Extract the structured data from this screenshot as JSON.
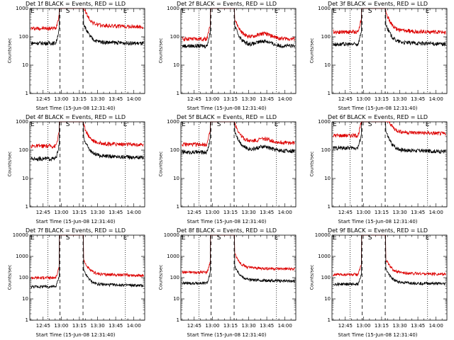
{
  "colors": {
    "events": "#000000",
    "lld": "#dd0000",
    "axes": "#000000"
  },
  "chart_data": [
    {
      "type": "line",
      "title": "Det 1f BLACK = Events, RED = LLD",
      "xlabel": "Start Time (15-Jun-08 12:31:40)",
      "ylabel": "Counts/sec",
      "yscale": "log",
      "ylim": [
        1,
        1000
      ],
      "yticks": [
        "1",
        "10",
        "100",
        "1000"
      ],
      "xlim": [
        "12:34",
        "14:09"
      ],
      "xticks": [
        "12:45",
        "13:00",
        "13:15",
        "13:30",
        "13:45",
        "14:00"
      ],
      "markers": [
        "E",
        "S",
        "E"
      ],
      "series": [
        {
          "level_before": 200,
          "level_after": 260,
          "bump": 1.0,
          "color": "#dd0000"
        },
        {
          "level_before": 60,
          "level_after": 68,
          "bump": 1.0,
          "color": "#000000"
        }
      ]
    },
    {
      "type": "line",
      "title": "Det 2f BLACK = Events, RED = LLD",
      "xlabel": "Start Time (15-Jun-08 12:31:40)",
      "ylabel": "Counts/sec",
      "yscale": "log",
      "ylim": [
        1,
        1000
      ],
      "yticks": [
        "1",
        "10",
        "100",
        "1000"
      ],
      "xlim": [
        "12:34",
        "14:09"
      ],
      "xticks": [
        "12:45",
        "13:00",
        "13:15",
        "13:30",
        "13:45",
        "14:00"
      ],
      "markers": [
        "E",
        "S",
        "E"
      ],
      "series": [
        {
          "level_before": 85,
          "level_after": 100,
          "bump": 1.4,
          "color": "#dd0000"
        },
        {
          "level_before": 48,
          "level_after": 55,
          "bump": 1.4,
          "color": "#000000"
        }
      ]
    },
    {
      "type": "line",
      "title": "Det 3f BLACK = Events, RED = LLD",
      "xlabel": "Start Time (15-Jun-08 12:31:40)",
      "ylabel": "Counts/sec",
      "yscale": "log",
      "ylim": [
        1,
        1000
      ],
      "yticks": [
        "1",
        "10",
        "100",
        "1000"
      ],
      "xlim": [
        "12:34",
        "14:09"
      ],
      "xticks": [
        "12:45",
        "13:00",
        "13:15",
        "13:30",
        "13:45",
        "14:00"
      ],
      "markers": [
        "E",
        "S",
        "E"
      ],
      "series": [
        {
          "level_before": 150,
          "level_after": 170,
          "bump": 1.0,
          "color": "#dd0000"
        },
        {
          "level_before": 55,
          "level_after": 65,
          "bump": 1.0,
          "color": "#000000"
        }
      ]
    },
    {
      "type": "line",
      "title": "Det 4f BLACK = Events, RED = LLD",
      "xlabel": "Start Time (15-Jun-08 12:31:40)",
      "ylabel": "Counts/sec",
      "yscale": "log",
      "ylim": [
        1,
        1000
      ],
      "yticks": [
        "1",
        "10",
        "100",
        "1000"
      ],
      "xlim": [
        "12:34",
        "14:09"
      ],
      "xticks": [
        "12:45",
        "13:00",
        "13:15",
        "13:30",
        "13:45",
        "14:00"
      ],
      "markers": [
        "E",
        "S",
        "E"
      ],
      "series": [
        {
          "level_before": 140,
          "level_after": 180,
          "bump": 1.0,
          "color": "#dd0000"
        },
        {
          "level_before": 50,
          "level_after": 65,
          "bump": 1.0,
          "color": "#000000"
        }
      ]
    },
    {
      "type": "line",
      "title": "Det 5f BLACK = Events, RED = LLD",
      "xlabel": "Start Time (15-Jun-08 12:31:40)",
      "ylabel": "Counts/sec",
      "yscale": "log",
      "ylim": [
        1,
        1000
      ],
      "yticks": [
        "1",
        "10",
        "100",
        "1000"
      ],
      "xlim": [
        "12:34",
        "14:09"
      ],
      "xticks": [
        "12:45",
        "13:00",
        "13:15",
        "13:30",
        "13:45",
        "14:00"
      ],
      "markers": [
        "E",
        "S",
        "E"
      ],
      "series": [
        {
          "level_before": 160,
          "level_after": 210,
          "bump": 1.3,
          "color": "#dd0000"
        },
        {
          "level_before": 85,
          "level_after": 110,
          "bump": 1.3,
          "color": "#000000"
        }
      ]
    },
    {
      "type": "line",
      "title": "Det 6f BLACK = Events, RED = LLD",
      "xlabel": "Start Time (15-Jun-08 12:31:40)",
      "ylabel": "Counts/sec",
      "yscale": "log",
      "ylim": [
        1,
        1000
      ],
      "yticks": [
        "1",
        "10",
        "100",
        "1000"
      ],
      "xlim": [
        "12:34",
        "14:09"
      ],
      "xticks": [
        "12:45",
        "13:00",
        "13:15",
        "13:30",
        "13:45",
        "14:00"
      ],
      "markers": [
        "E",
        "S",
        "E"
      ],
      "series": [
        {
          "level_before": 330,
          "level_after": 450,
          "bump": 1.0,
          "color": "#dd0000"
        },
        {
          "level_before": 120,
          "level_after": 105,
          "bump": 1.0,
          "color": "#000000"
        }
      ]
    },
    {
      "type": "line",
      "title": "Det 7f BLACK = Events, RED = LLD",
      "xlabel": "Start Time (15-Jun-08 12:31:40)",
      "ylabel": "Counts/sec",
      "yscale": "log",
      "ylim": [
        1,
        10000
      ],
      "yticks": [
        "1",
        "10",
        "100",
        "1000",
        "10000"
      ],
      "xlim": [
        "12:34",
        "14:09"
      ],
      "xticks": [
        "12:45",
        "13:00",
        "13:15",
        "13:30",
        "13:45",
        "14:00"
      ],
      "markers": [
        "E",
        "S",
        "E"
      ],
      "series": [
        {
          "level_before": 100,
          "level_after": 150,
          "bump": 1.0,
          "color": "#dd0000"
        },
        {
          "level_before": 38,
          "level_after": 50,
          "bump": 1.0,
          "color": "#000000"
        }
      ]
    },
    {
      "type": "line",
      "title": "Det 8f BLACK = Events, RED = LLD",
      "xlabel": "Start Time (15-Jun-08 12:31:40)",
      "ylabel": "Counts/sec",
      "yscale": "log",
      "ylim": [
        1,
        10000
      ],
      "yticks": [
        "1",
        "10",
        "100",
        "1000",
        "10000"
      ],
      "xlim": [
        "12:34",
        "14:09"
      ],
      "xticks": [
        "12:45",
        "13:00",
        "13:15",
        "13:30",
        "13:45",
        "14:00"
      ],
      "markers": [
        "E",
        "S",
        "E"
      ],
      "series": [
        {
          "level_before": 180,
          "level_after": 300,
          "bump": 1.0,
          "color": "#dd0000"
        },
        {
          "level_before": 55,
          "level_after": 80,
          "bump": 1.0,
          "color": "#000000"
        }
      ]
    },
    {
      "type": "line",
      "title": "Det 9f BLACK = Events, RED = LLD",
      "xlabel": "Start Time (15-Jun-08 12:31:40)",
      "ylabel": "Counts/sec",
      "yscale": "log",
      "ylim": [
        1,
        10000
      ],
      "yticks": [
        "1",
        "10",
        "100",
        "1000",
        "10000"
      ],
      "xlim": [
        "12:34",
        "14:09"
      ],
      "xticks": [
        "12:45",
        "13:00",
        "13:15",
        "13:30",
        "13:45",
        "14:00"
      ],
      "markers": [
        "E",
        "S",
        "E"
      ],
      "series": [
        {
          "level_before": 140,
          "level_after": 170,
          "bump": 1.0,
          "color": "#dd0000"
        },
        {
          "level_before": 50,
          "level_after": 60,
          "bump": 1.0,
          "color": "#000000"
        }
      ]
    }
  ]
}
